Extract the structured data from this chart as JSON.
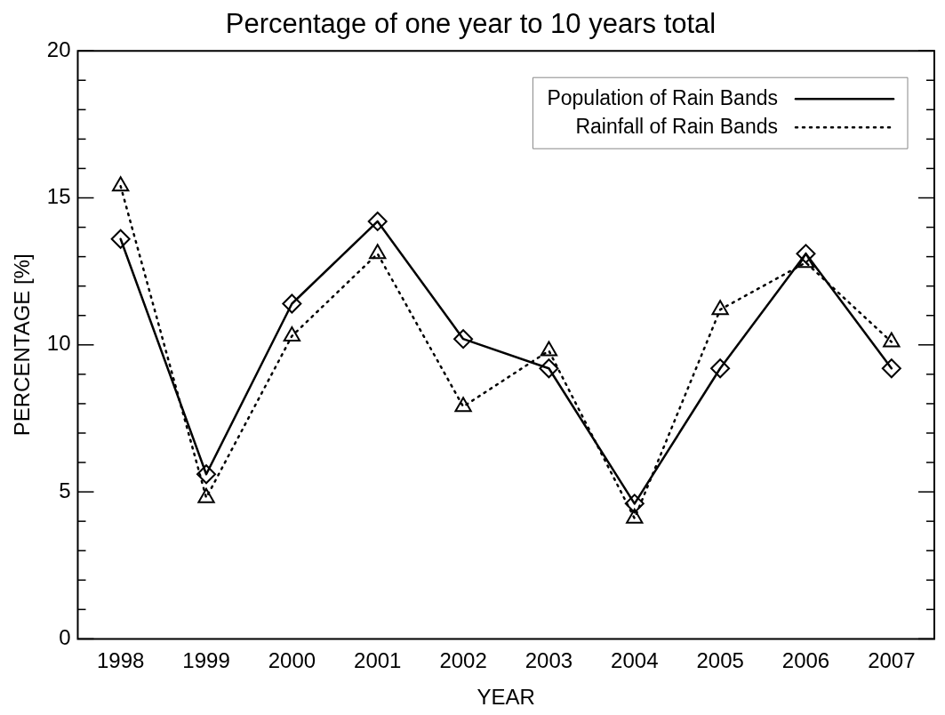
{
  "chart_data": {
    "type": "line",
    "title": "Percentage of one year to 10 years total",
    "xlabel": "YEAR",
    "ylabel": "PERCENTAGE [%]",
    "categories": [
      "1998",
      "1999",
      "2000",
      "2001",
      "2002",
      "2003",
      "2004",
      "2005",
      "2006",
      "2007"
    ],
    "series": [
      {
        "name": "Population of Rain Bands",
        "color": "#000000",
        "marker": "diamond",
        "line_style": "solid",
        "values": [
          13.6,
          5.6,
          11.4,
          14.2,
          10.2,
          9.2,
          4.6,
          9.2,
          13.1,
          9.2
        ]
      },
      {
        "name": "Rainfall of Rain Bands",
        "color": "#000000",
        "marker": "triangle",
        "line_style": "dotted",
        "values": [
          15.4,
          4.8,
          10.3,
          13.1,
          7.9,
          9.8,
          4.1,
          11.2,
          12.8,
          10.1
        ]
      }
    ],
    "ylim": [
      0,
      20
    ],
    "yticks": [
      0,
      {
        "value": 1,
        "label": null
      },
      {
        "value": 2,
        "label": null
      },
      {
        "value": 3,
        "label": null
      },
      {
        "value": 4,
        "label": null
      },
      5,
      {
        "value": 6,
        "label": null
      },
      {
        "value": 7,
        "label": null
      },
      {
        "value": 8,
        "label": null
      },
      {
        "value": 9,
        "label": null
      },
      10,
      {
        "value": 11,
        "label": null
      },
      {
        "value": 12,
        "label": null
      },
      {
        "value": 13,
        "label": null
      },
      {
        "value": 14,
        "label": null
      },
      15,
      {
        "value": 16,
        "label": null
      },
      {
        "value": 17,
        "label": null
      },
      {
        "value": 18,
        "label": null
      },
      {
        "value": 19,
        "label": null
      },
      20
    ],
    "grid": false,
    "legend": "top right"
  }
}
